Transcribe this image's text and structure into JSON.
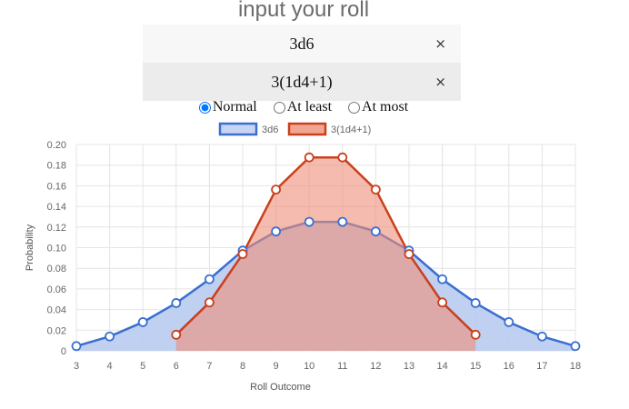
{
  "header": {
    "title": "input your roll"
  },
  "rolls": [
    {
      "value": "3d6",
      "remove": "×"
    },
    {
      "value": "3(1d4+1)",
      "remove": "×"
    }
  ],
  "modes": {
    "selected": "Normal",
    "options": [
      "Normal",
      "At least",
      "At most"
    ]
  },
  "chart_data": {
    "type": "area",
    "xlabel": "Roll Outcome",
    "ylabel": "Probability",
    "ylim": [
      0,
      0.2
    ],
    "xlim": [
      3,
      18
    ],
    "yticks": [
      "0",
      "0.02",
      "0.04",
      "0.06",
      "0.08",
      "0.10",
      "0.12",
      "0.14",
      "0.16",
      "0.18",
      "0.20"
    ],
    "xticks": [
      "3",
      "4",
      "5",
      "6",
      "7",
      "8",
      "9",
      "10",
      "11",
      "12",
      "13",
      "14",
      "15",
      "16",
      "17",
      "18"
    ],
    "grid": true,
    "legend_position": "top-center",
    "series": [
      {
        "name": "3d6",
        "color": "#3a6fd1",
        "fill": "#b9cbef",
        "x": [
          3,
          4,
          5,
          6,
          7,
          8,
          9,
          10,
          11,
          12,
          13,
          14,
          15,
          16,
          17,
          18
        ],
        "values": [
          0.0046,
          0.0139,
          0.0278,
          0.0463,
          0.0694,
          0.0972,
          0.1157,
          0.125,
          0.125,
          0.1157,
          0.0972,
          0.0694,
          0.0463,
          0.0278,
          0.0139,
          0.0046
        ]
      },
      {
        "name": "3(1d4+1)",
        "color": "#c9401c",
        "fill": "#ee8e78",
        "x": [
          6,
          7,
          8,
          9,
          10,
          11,
          12,
          13,
          14,
          15
        ],
        "values": [
          0.0156,
          0.0469,
          0.0938,
          0.1563,
          0.1875,
          0.1875,
          0.1563,
          0.0938,
          0.0469,
          0.0156
        ]
      }
    ]
  }
}
